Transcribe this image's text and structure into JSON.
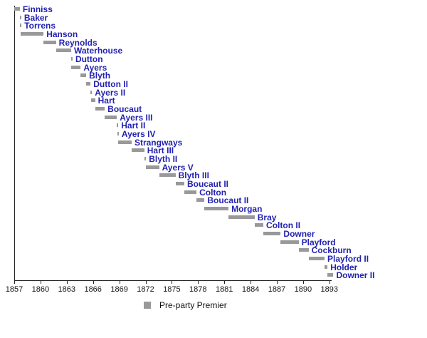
{
  "colors": {
    "bar": "#999999",
    "label": "#2222b0",
    "axis": "#222222"
  },
  "legend": {
    "label": "Pre-party Premier",
    "swatch": "gray-square"
  },
  "axis": {
    "ticks": [
      "1857",
      "1860",
      "1863",
      "1866",
      "1869",
      "1872",
      "1875",
      "1878",
      "1881",
      "1884",
      "1887",
      "1890",
      "1893"
    ]
  },
  "chart_data": {
    "type": "bar",
    "subtype": "gantt-timeline",
    "title": "",
    "xlabel": "",
    "ylabel": "",
    "xlim": [
      1857,
      1894
    ],
    "grid": false,
    "legend_position": "bottom",
    "legend_entries": [
      "Pre-party Premier"
    ],
    "bars": [
      {
        "label": "Finniss",
        "start": 1857.0,
        "end": 1857.64
      },
      {
        "label": "Baker",
        "start": 1857.64,
        "end": 1857.67
      },
      {
        "label": "Torrens",
        "start": 1857.67,
        "end": 1857.75
      },
      {
        "label": "Hanson",
        "start": 1857.75,
        "end": 1860.35
      },
      {
        "label": "Reynolds",
        "start": 1860.35,
        "end": 1861.77
      },
      {
        "label": "Waterhouse",
        "start": 1861.77,
        "end": 1863.5
      },
      {
        "label": "Dutton",
        "start": 1863.5,
        "end": 1863.54
      },
      {
        "label": "Ayers",
        "start": 1863.54,
        "end": 1864.59
      },
      {
        "label": "Blyth",
        "start": 1864.59,
        "end": 1865.22
      },
      {
        "label": "Dutton II",
        "start": 1865.22,
        "end": 1865.72
      },
      {
        "label": "Ayers II",
        "start": 1865.72,
        "end": 1865.81
      },
      {
        "label": "Hart",
        "start": 1865.81,
        "end": 1866.24
      },
      {
        "label": "Boucaut",
        "start": 1866.24,
        "end": 1867.34
      },
      {
        "label": "Ayers III",
        "start": 1867.34,
        "end": 1868.73
      },
      {
        "label": "Hart II",
        "start": 1868.73,
        "end": 1868.78
      },
      {
        "label": "Ayers IV",
        "start": 1868.78,
        "end": 1868.84
      },
      {
        "label": "Strangways",
        "start": 1868.84,
        "end": 1870.41
      },
      {
        "label": "Hart III",
        "start": 1870.41,
        "end": 1871.86
      },
      {
        "label": "Blyth II",
        "start": 1871.86,
        "end": 1872.06
      },
      {
        "label": "Ayers V",
        "start": 1872.06,
        "end": 1873.55
      },
      {
        "label": "Blyth III",
        "start": 1873.55,
        "end": 1875.42
      },
      {
        "label": "Boucaut II",
        "start": 1875.42,
        "end": 1876.43
      },
      {
        "label": "Colton",
        "start": 1876.43,
        "end": 1877.82
      },
      {
        "label": "Boucaut II",
        "start": 1877.82,
        "end": 1878.74
      },
      {
        "label": "Morgan",
        "start": 1878.74,
        "end": 1881.48
      },
      {
        "label": "Bray",
        "start": 1881.48,
        "end": 1884.46
      },
      {
        "label": "Colton II",
        "start": 1884.46,
        "end": 1885.46
      },
      {
        "label": "Downer",
        "start": 1885.46,
        "end": 1887.44
      },
      {
        "label": "Playford",
        "start": 1887.44,
        "end": 1889.49
      },
      {
        "label": "Cockburn",
        "start": 1889.49,
        "end": 1890.63
      },
      {
        "label": "Playford II",
        "start": 1890.63,
        "end": 1892.45
      },
      {
        "label": "Holder",
        "start": 1892.45,
        "end": 1892.79
      },
      {
        "label": "Downer II",
        "start": 1892.79,
        "end": 1893.46
      }
    ]
  }
}
